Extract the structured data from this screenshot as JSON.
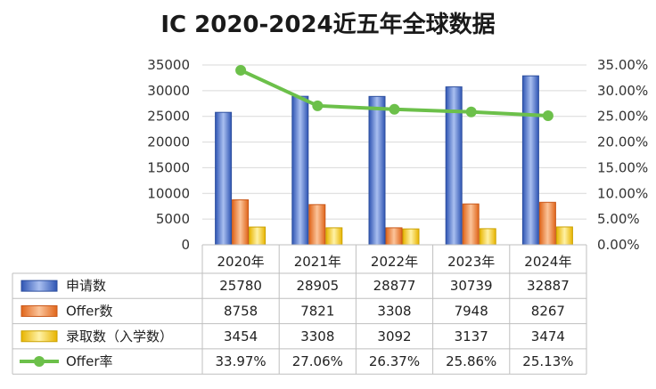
{
  "chart_data": {
    "type": "bar",
    "title": "IC 2020-2024近五年全球数据",
    "categories": [
      "2020年",
      "2021年",
      "2022年",
      "2023年",
      "2024年"
    ],
    "series": [
      {
        "name": "申请数",
        "type": "bar",
        "axis": "left",
        "color": "#4a72c8",
        "values": [
          25780,
          28905,
          28877,
          30739,
          32887
        ],
        "labels": [
          "25780",
          "28905",
          "28877",
          "30739",
          "32887"
        ]
      },
      {
        "name": "Offer数",
        "type": "bar",
        "axis": "left",
        "color": "#ed7d31",
        "values": [
          8758,
          7821,
          3308,
          7948,
          8267
        ],
        "labels": [
          "8758",
          "7821",
          "3308",
          "7948",
          "8267"
        ]
      },
      {
        "name": "录取数（入学数）",
        "type": "bar",
        "axis": "left",
        "color": "#f5c400",
        "values": [
          3454,
          3308,
          3092,
          3137,
          3474
        ],
        "labels": [
          "3454",
          "3308",
          "3092",
          "3137",
          "3474"
        ]
      },
      {
        "name": "Offer率",
        "type": "line",
        "axis": "right",
        "color": "#6cc04a",
        "values": [
          33.97,
          27.06,
          26.37,
          25.86,
          25.13
        ],
        "labels": [
          "33.97%",
          "27.06%",
          "26.37%",
          "25.86%",
          "25.13%"
        ]
      }
    ],
    "ylim": [
      0,
      35000
    ],
    "yticks": [
      "35000",
      "30000",
      "25000",
      "20000",
      "15000",
      "10000",
      "5000",
      "0"
    ],
    "ylim_right": [
      0,
      35
    ],
    "yticks_right": [
      "35.00%",
      "30.00%",
      "25.00%",
      "20.00%",
      "15.00%",
      "10.00%",
      "5.00%",
      "0.00%"
    ],
    "grid": true,
    "legend": "data-table"
  }
}
